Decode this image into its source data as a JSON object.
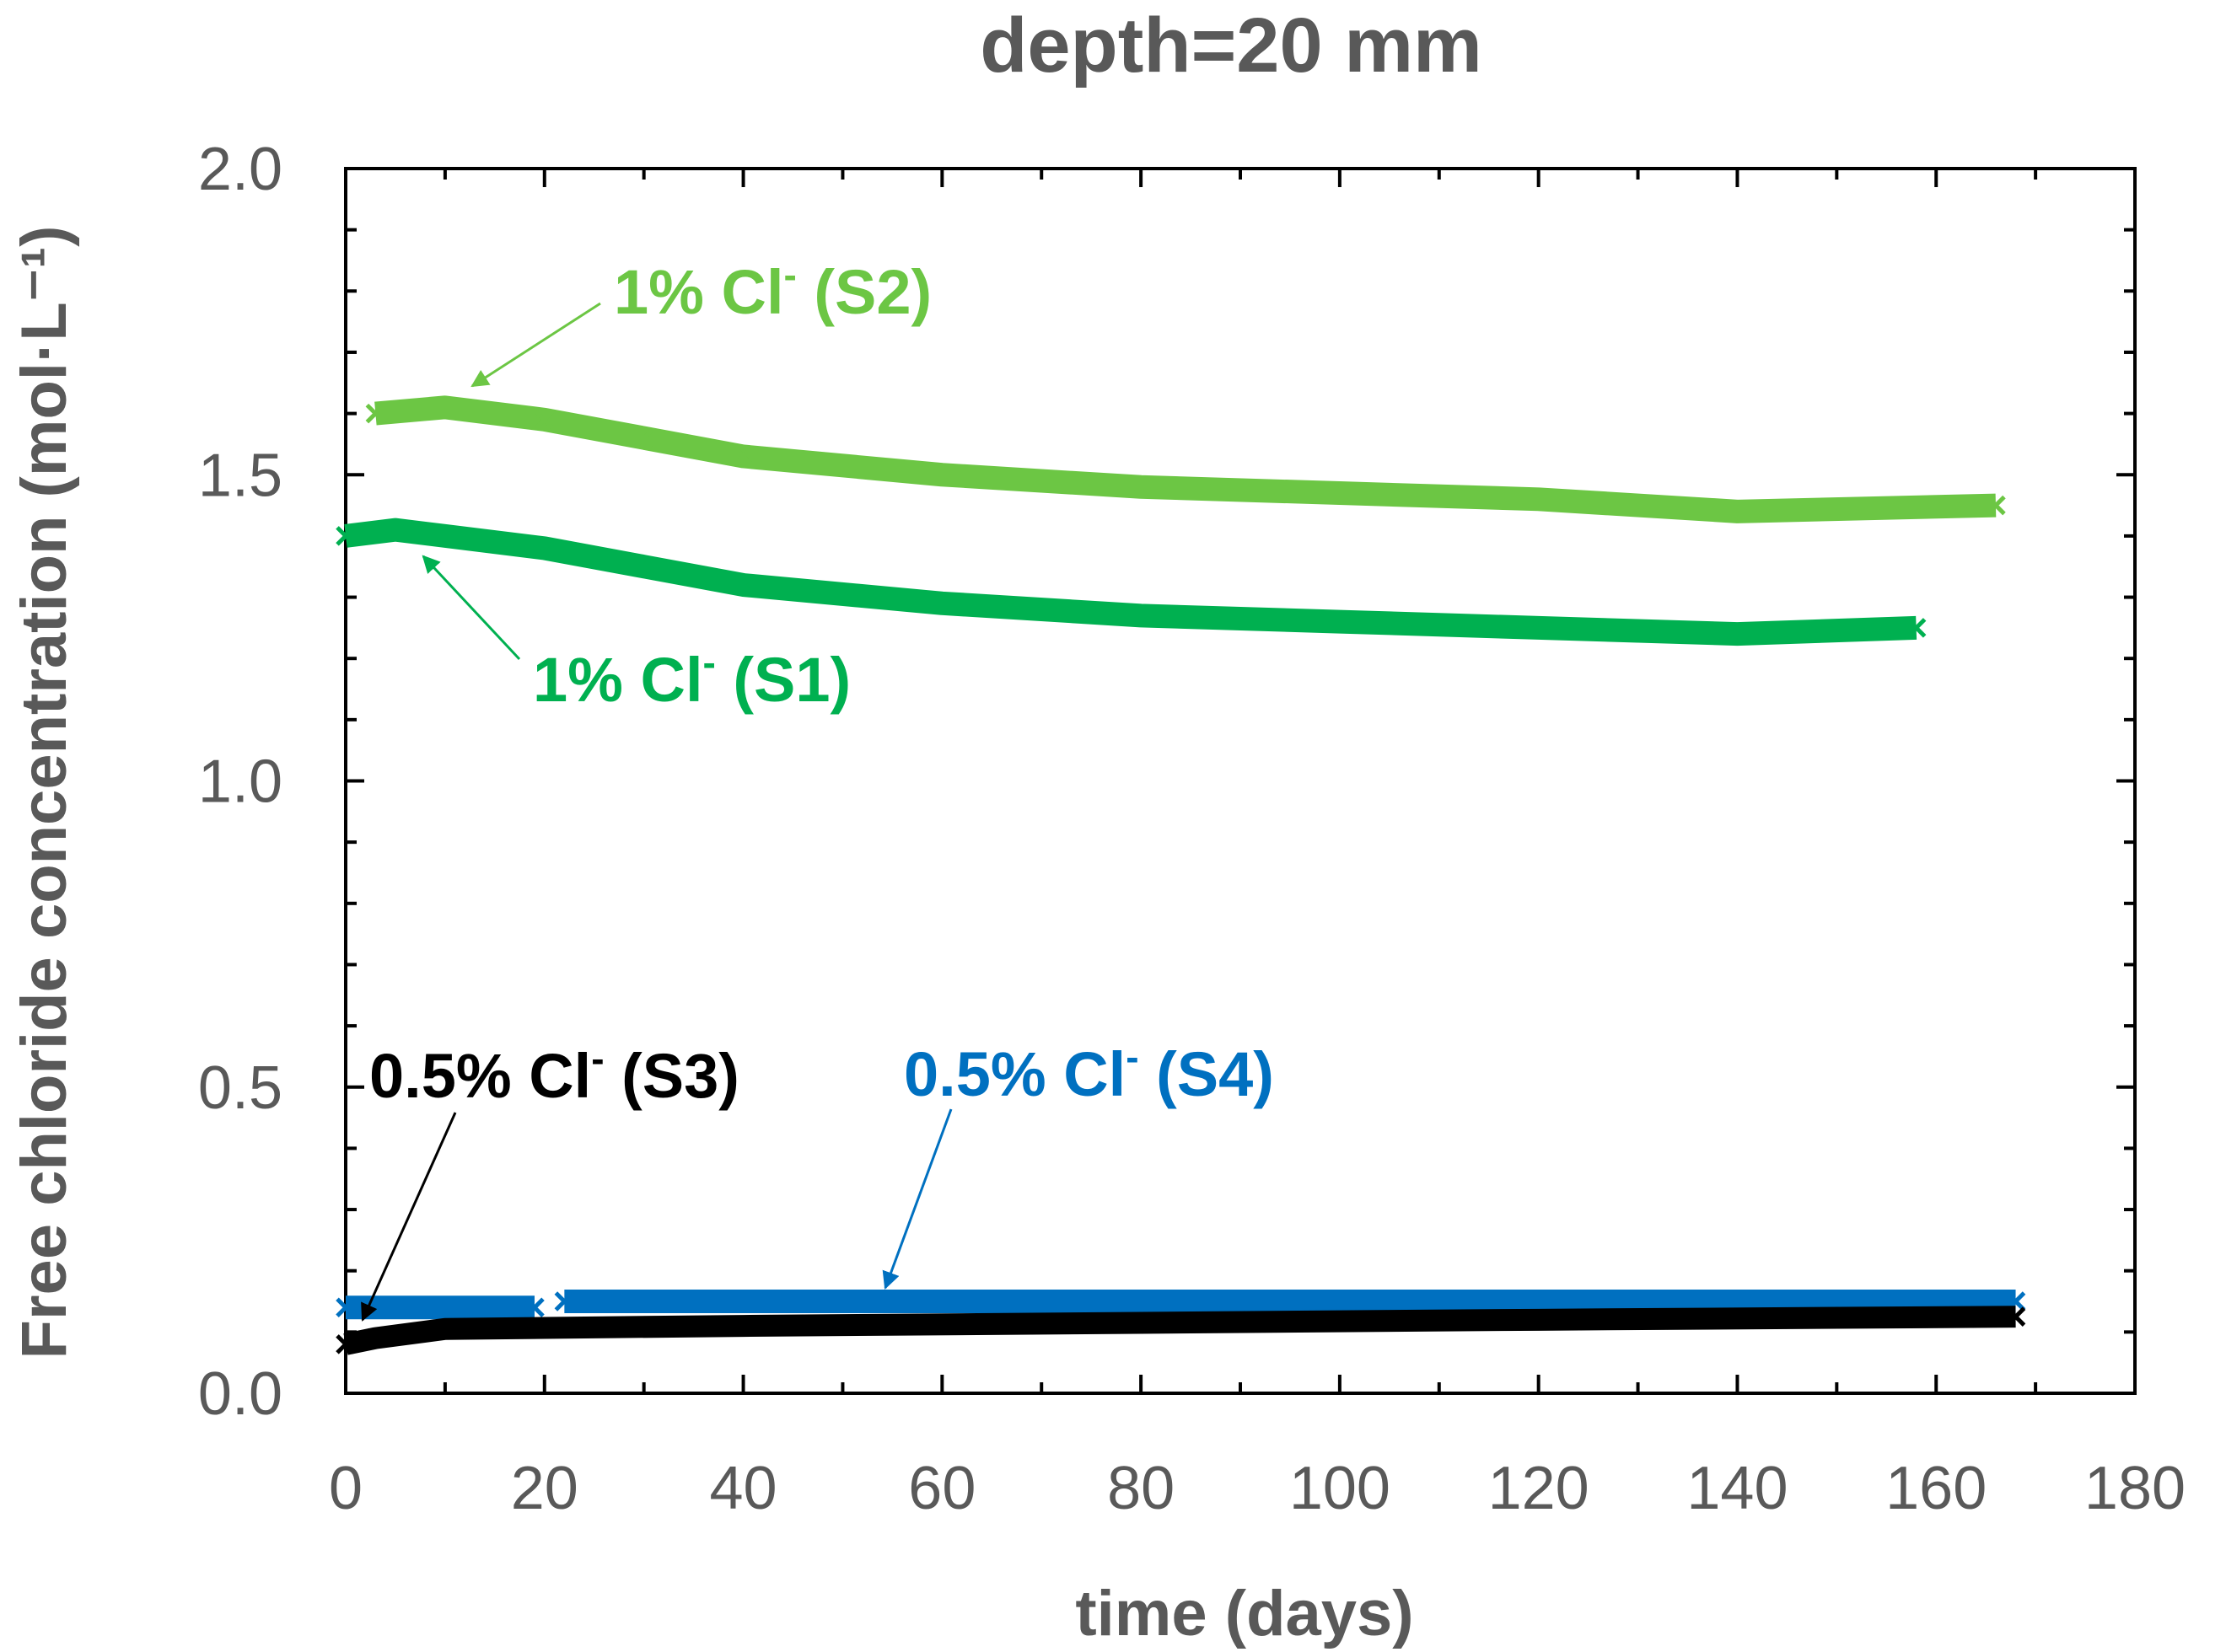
{
  "chart_data": {
    "type": "line",
    "title": "depth=20 mm",
    "xlabel": "time (days)",
    "ylabel": "Free chloride concentration (mol·L⁻¹)",
    "xlim": [
      0,
      180
    ],
    "ylim": [
      0,
      2
    ],
    "x_ticks": [
      "0",
      "20",
      "40",
      "60",
      "80",
      "100",
      "120",
      "140",
      "160",
      "180"
    ],
    "y_ticks": [
      "0.0",
      "0.5",
      "1.0",
      "1.5",
      "2.0"
    ],
    "x_tick_values": [
      0,
      20,
      40,
      60,
      80,
      100,
      120,
      140,
      160,
      180
    ],
    "y_tick_values": [
      0,
      0.5,
      1.0,
      1.5,
      2.0
    ],
    "grid": false,
    "series": [
      {
        "id": "s2",
        "name": "1% Cl⁻ (S2)",
        "label_main": "1% Cl",
        "label_sup": "-",
        "label_tail": " (S2)",
        "color": "#6cc644",
        "x": [
          3,
          10,
          20,
          30,
          40,
          60,
          80,
          100,
          120,
          140,
          166
        ],
        "values": [
          1.6,
          1.61,
          1.59,
          1.56,
          1.53,
          1.5,
          1.48,
          1.47,
          1.46,
          1.44,
          1.45
        ]
      },
      {
        "id": "s1",
        "name": "1% Cl⁻ (S1)",
        "label_main": "1% Cl",
        "label_sup": "-",
        "label_tail": " (S1)",
        "color": "#00b050",
        "x": [
          0,
          5,
          10,
          20,
          30,
          40,
          60,
          80,
          100,
          120,
          140,
          158
        ],
        "values": [
          1.4,
          1.41,
          1.4,
          1.38,
          1.35,
          1.32,
          1.29,
          1.27,
          1.26,
          1.25,
          1.24,
          1.25
        ]
      },
      {
        "id": "s4",
        "name": "0.5% Cl⁻ (S4)",
        "label_main": "0.5% Cl",
        "label_sup": "-",
        "label_tail": " (S4)",
        "color": "#0070c0",
        "x": [
          0,
          19,
          22,
          60,
          100,
          140,
          168
        ],
        "values": [
          0.14,
          0.14,
          0.15,
          0.15,
          0.15,
          0.15,
          0.15
        ]
      },
      {
        "id": "s3",
        "name": "0.5% Cl⁻ (S3)",
        "label_main": "0.5% Cl",
        "label_sup": "-",
        "label_tail": " (S3)",
        "color": "#000000",
        "x": [
          0,
          3,
          10,
          40,
          80,
          120,
          168
        ],
        "values": [
          0.08,
          0.09,
          0.105,
          0.11,
          0.115,
          0.12,
          0.125
        ]
      }
    ]
  }
}
